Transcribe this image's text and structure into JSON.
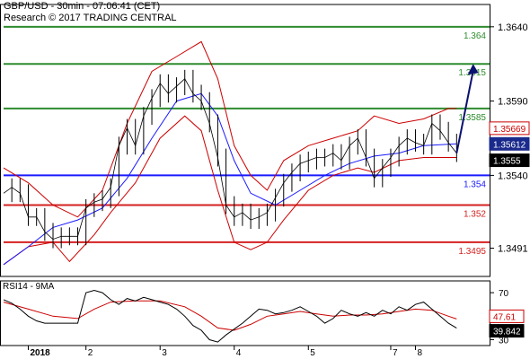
{
  "header": {
    "symbol_line": "GBP/USD - 30min - 07:06:41 (CET)",
    "research_line": "Research © 2017 TRADING CENTRAL"
  },
  "rsi_panel": {
    "label": "RSI14 - 9MA"
  },
  "colors": {
    "resistance": "#2e8b2e",
    "support": "#d42020",
    "pivot": "#1a1aff",
    "price_tag": "#000000",
    "ma_tag": "#1a2a8c",
    "bollinger": "#cc0000",
    "ma": "#1a1aff",
    "arrow": "#0a1070",
    "rsi": "#000000",
    "rsi_ma": "#cc0000"
  },
  "chart_data": [
    {
      "type": "candlestick",
      "title": "GBP/USD - 30min",
      "ylim": [
        1.3472,
        1.3655
      ],
      "y_ticks": [
        "1.3640",
        "1.3590",
        "1.3540",
        "1.3491"
      ],
      "x_ticks": [
        "2018",
        "2",
        "3",
        "4",
        "5",
        "7",
        "8"
      ],
      "levels": [
        {
          "value": 1.364,
          "label": "1.364",
          "kind": "resistance"
        },
        {
          "value": 1.3615,
          "label": "1.3615",
          "kind": "resistance"
        },
        {
          "value": 1.3585,
          "label": "1.3585",
          "kind": "resistance"
        },
        {
          "value": 1.354,
          "label": "1.354",
          "kind": "pivot"
        },
        {
          "value": 1.352,
          "label": "1.352",
          "kind": "support"
        },
        {
          "value": 1.3495,
          "label": "1.3495",
          "kind": "support"
        }
      ],
      "price_tags": [
        {
          "value": 1.35669,
          "label": "1.35669",
          "style": "bollinger"
        },
        {
          "value": 1.35612,
          "label": "1.35612",
          "style": "ma"
        },
        {
          "value": 1.3555,
          "label": "1.3555",
          "style": "price"
        }
      ],
      "close_path": [
        [
          0,
          1.3528
        ],
        [
          1,
          1.3532
        ],
        [
          2,
          1.3528
        ],
        [
          3,
          1.3512
        ],
        [
          4,
          1.3512
        ],
        [
          5,
          1.3502
        ],
        [
          6,
          1.3497
        ],
        [
          7,
          1.3499
        ],
        [
          8,
          1.3499
        ],
        [
          9,
          1.3499
        ],
        [
          10,
          1.3518
        ],
        [
          11,
          1.3522
        ],
        [
          12,
          1.3524
        ],
        [
          13,
          1.3532
        ],
        [
          14,
          1.356
        ],
        [
          15,
          1.3572
        ],
        [
          16,
          1.356
        ],
        [
          17,
          1.358
        ],
        [
          18,
          1.3592
        ],
        [
          19,
          1.3602
        ],
        [
          20,
          1.3595
        ],
        [
          21,
          1.36
        ],
        [
          22,
          1.3605
        ],
        [
          23,
          1.3595
        ],
        [
          24,
          1.359
        ],
        [
          25,
          1.3575
        ],
        [
          26,
          1.3552
        ],
        [
          27,
          1.352
        ],
        [
          28,
          1.3512
        ],
        [
          29,
          1.3515
        ],
        [
          30,
          1.351
        ],
        [
          31,
          1.3512
        ],
        [
          32,
          1.3515
        ],
        [
          33,
          1.3525
        ],
        [
          34,
          1.3535
        ],
        [
          35,
          1.3542
        ],
        [
          36,
          1.3548
        ],
        [
          37,
          1.355
        ],
        [
          38,
          1.3552
        ],
        [
          39,
          1.3552
        ],
        [
          40,
          1.3555
        ],
        [
          41,
          1.355
        ],
        [
          42,
          1.356
        ],
        [
          43,
          1.3565
        ],
        [
          44,
          1.3552
        ],
        [
          45,
          1.3538
        ],
        [
          46,
          1.3545
        ],
        [
          47,
          1.3552
        ],
        [
          48,
          1.356
        ],
        [
          49,
          1.3565
        ],
        [
          50,
          1.3562
        ],
        [
          51,
          1.356
        ],
        [
          52,
          1.3575
        ],
        [
          53,
          1.357
        ],
        [
          54,
          1.3562
        ],
        [
          55,
          1.3555
        ]
      ],
      "bollinger_upper": [
        [
          0,
          1.3545
        ],
        [
          3,
          1.3535
        ],
        [
          6,
          1.352
        ],
        [
          9,
          1.3512
        ],
        [
          12,
          1.353
        ],
        [
          15,
          1.3575
        ],
        [
          18,
          1.361
        ],
        [
          21,
          1.362
        ],
        [
          24,
          1.363
        ],
        [
          26,
          1.3605
        ],
        [
          28,
          1.356
        ],
        [
          30,
          1.354
        ],
        [
          32,
          1.353
        ],
        [
          34,
          1.355
        ],
        [
          37,
          1.356
        ],
        [
          40,
          1.3565
        ],
        [
          43,
          1.357
        ],
        [
          45,
          1.358
        ],
        [
          48,
          1.3575
        ],
        [
          51,
          1.3578
        ],
        [
          54,
          1.3585
        ],
        [
          55,
          1.3585
        ]
      ],
      "bollinger_lower": [
        [
          0,
          1.348
        ],
        [
          3,
          1.3492
        ],
        [
          6,
          1.3495
        ],
        [
          8,
          1.3482
        ],
        [
          11,
          1.35
        ],
        [
          13,
          1.3515
        ],
        [
          16,
          1.3535
        ],
        [
          19,
          1.3565
        ],
        [
          22,
          1.358
        ],
        [
          24,
          1.357
        ],
        [
          26,
          1.353
        ],
        [
          28,
          1.3495
        ],
        [
          30,
          1.349
        ],
        [
          32,
          1.3495
        ],
        [
          34,
          1.351
        ],
        [
          37,
          1.353
        ],
        [
          40,
          1.354
        ],
        [
          43,
          1.3545
        ],
        [
          45,
          1.3542
        ],
        [
          48,
          1.355
        ],
        [
          51,
          1.3552
        ],
        [
          55,
          1.3552
        ]
      ],
      "moving_average": [
        [
          0,
          1.348
        ],
        [
          3,
          1.3492
        ],
        [
          6,
          1.3505
        ],
        [
          9,
          1.351
        ],
        [
          12,
          1.3518
        ],
        [
          15,
          1.3538
        ],
        [
          18,
          1.3565
        ],
        [
          21,
          1.359
        ],
        [
          24,
          1.3595
        ],
        [
          26,
          1.358
        ],
        [
          28,
          1.355
        ],
        [
          30,
          1.3528
        ],
        [
          33,
          1.352
        ],
        [
          36,
          1.353
        ],
        [
          39,
          1.354
        ],
        [
          42,
          1.3548
        ],
        [
          45,
          1.3553
        ],
        [
          48,
          1.3555
        ],
        [
          51,
          1.356
        ],
        [
          55,
          1.35612
        ]
      ],
      "forecast_arrow": {
        "from": [
          55,
          1.3555
        ],
        "to": [
          57,
          1.3615
        ]
      }
    },
    {
      "type": "line",
      "title": "RSI14 - 9MA",
      "ylim": [
        25,
        80
      ],
      "y_ticks": [
        "70",
        "30"
      ],
      "value_tags": [
        {
          "value": 47.61,
          "label": "47.61",
          "series": "RSI MA"
        },
        {
          "value": 39.842,
          "label": "39.842",
          "series": "RSI"
        }
      ],
      "series": [
        {
          "values": [
            [
              0,
              64
            ],
            [
              1,
              61
            ],
            [
              2,
              56
            ],
            [
              3,
              50
            ],
            [
              4,
              46
            ],
            [
              5,
              44
            ],
            [
              6,
              44
            ],
            [
              7,
              44
            ],
            [
              8,
              44
            ],
            [
              9,
              44
            ],
            [
              10,
              70
            ],
            [
              11,
              72
            ],
            [
              12,
              70
            ],
            [
              13,
              64
            ],
            [
              14,
              60
            ],
            [
              15,
              65
            ],
            [
              16,
              63
            ],
            [
              17,
              66
            ],
            [
              18,
              64
            ],
            [
              19,
              62
            ],
            [
              20,
              60
            ],
            [
              21,
              56
            ],
            [
              22,
              50
            ],
            [
              23,
              42
            ],
            [
              24,
              38
            ],
            [
              25,
              30
            ],
            [
              26,
              28
            ],
            [
              27,
              34
            ],
            [
              28,
              39
            ],
            [
              29,
              44
            ],
            [
              30,
              50
            ],
            [
              31,
              56
            ],
            [
              32,
              55
            ],
            [
              33,
              52
            ],
            [
              34,
              53
            ],
            [
              35,
              55
            ],
            [
              36,
              58
            ],
            [
              37,
              54
            ],
            [
              38,
              50
            ],
            [
              39,
              44
            ],
            [
              40,
              48
            ],
            [
              41,
              55
            ],
            [
              42,
              52
            ],
            [
              43,
              50
            ],
            [
              44,
              53
            ],
            [
              45,
              50
            ],
            [
              46,
              55
            ],
            [
              47,
              52
            ],
            [
              48,
              58
            ],
            [
              49,
              55
            ],
            [
              50,
              60
            ],
            [
              51,
              62
            ],
            [
              52,
              56
            ],
            [
              53,
              50
            ],
            [
              54,
              44
            ],
            [
              55,
              39.842
            ]
          ]
        },
        {
          "values": [
            [
              0,
              62
            ],
            [
              3,
              56
            ],
            [
              6,
              50
            ],
            [
              9,
              48
            ],
            [
              11,
              56
            ],
            [
              13,
              62
            ],
            [
              16,
              63
            ],
            [
              19,
              63
            ],
            [
              22,
              58
            ],
            [
              24,
              50
            ],
            [
              26,
              40
            ],
            [
              28,
              38
            ],
            [
              30,
              43
            ],
            [
              32,
              50
            ],
            [
              34,
              52
            ],
            [
              36,
              54
            ],
            [
              38,
              52
            ],
            [
              40,
              50
            ],
            [
              42,
              51
            ],
            [
              44,
              51
            ],
            [
              46,
              52
            ],
            [
              48,
              54
            ],
            [
              50,
              56
            ],
            [
              52,
              55
            ],
            [
              54,
              50
            ],
            [
              55,
              47.61
            ]
          ]
        }
      ]
    }
  ]
}
